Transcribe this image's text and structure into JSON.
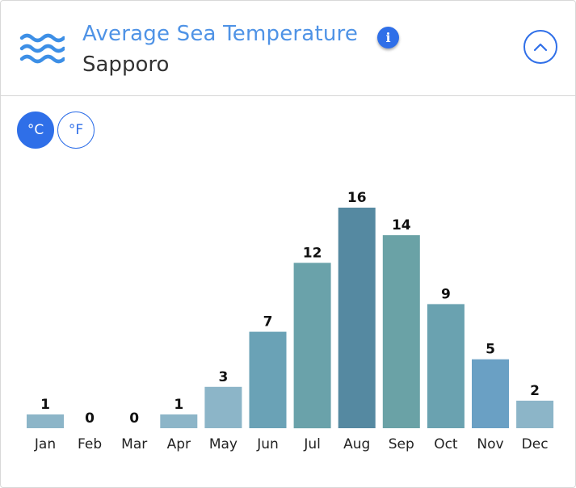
{
  "header": {
    "title": "Average Sea Temperature",
    "location": "Sapporo",
    "info_icon": "info-icon",
    "collapse_icon": "chevron-up-icon",
    "wave_icon": "waves-icon"
  },
  "units": {
    "celsius_label": "°C",
    "fahrenheit_label": "°F",
    "selected": "celsius"
  },
  "colors": {
    "accent": "#2f6fe8",
    "title": "#4f93e6"
  },
  "chart_data": {
    "type": "bar",
    "title": "Average Sea Temperature",
    "subtitle": "Sapporo",
    "unit": "°C",
    "categories": [
      "Jan",
      "Feb",
      "Mar",
      "Apr",
      "May",
      "Jun",
      "Jul",
      "Aug",
      "Sep",
      "Oct",
      "Nov",
      "Dec"
    ],
    "values": [
      1,
      0,
      0,
      1,
      3,
      7,
      12,
      16,
      14,
      9,
      5,
      2
    ],
    "bar_colors": [
      "#8cb5c8",
      "#8cb5c8",
      "#8cb5c8",
      "#8cb5c8",
      "#8cb5c8",
      "#6aa2b6",
      "#6aa2aa",
      "#5589a1",
      "#6aa2a6",
      "#6aa2b0",
      "#6aa0c4",
      "#8cb5c8"
    ],
    "ylim": [
      0,
      16
    ],
    "grid": false,
    "xlabel": "",
    "ylabel": ""
  }
}
